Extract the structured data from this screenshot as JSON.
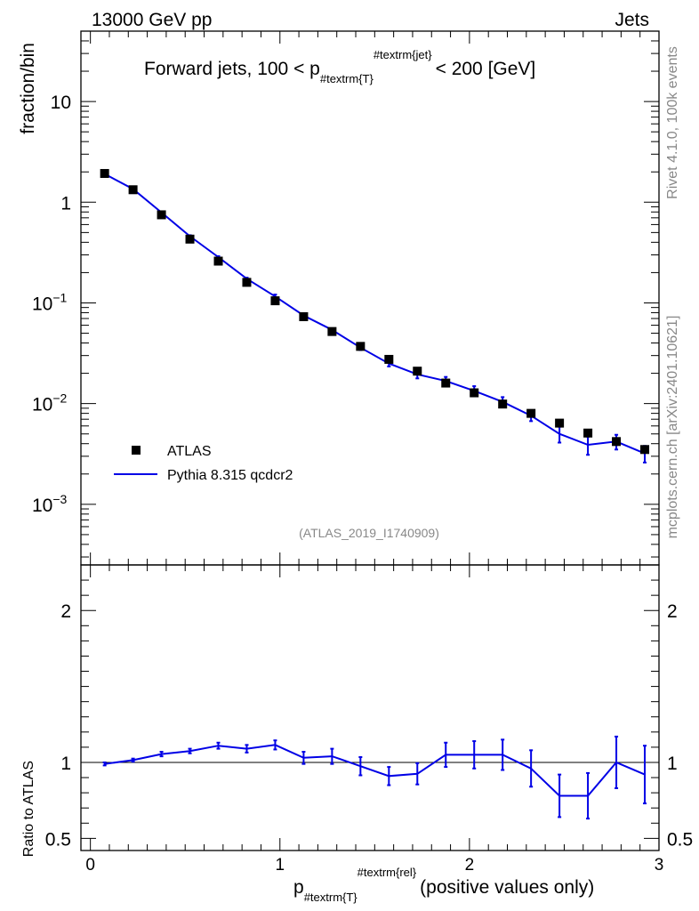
{
  "header": {
    "left": "13000 GeV pp",
    "right": "Jets"
  },
  "side": {
    "upper": "Rivet 4.1.0,  100k events",
    "lower": "mcplots.cern.ch [arXiv:2401.10621]"
  },
  "top_title": {
    "pre": "Forward jets, 100 < p",
    "sub": "#textrm{T}",
    "sup": "#textrm{jet}",
    "post": "< 200 [GeV]"
  },
  "analysis_id": "(ATLAS_2019_I1740909)",
  "legend": {
    "data_label": "ATLAS",
    "mc_label": "Pythia 8.315 qcdcr2"
  },
  "colors": {
    "mc": "#0000e6",
    "data": "#000000"
  },
  "x_axis": {
    "pre": "p",
    "sub": "#textrm{T}",
    "sup": "#textrm{rel}",
    "post": "(positive values only)",
    "ticks": [
      "0",
      "1",
      "2",
      "3"
    ]
  },
  "chart_data": [
    {
      "type": "scatter",
      "title": "Forward jets, 100 < p_T^jet < 200 [GeV]",
      "ylabel": "fraction/bin",
      "yscale": "log",
      "xlim": [
        -0.05,
        3.0
      ],
      "ylim": [
        0.00025,
        50
      ],
      "y_ticks": [
        {
          "v": 10,
          "label": "10",
          "exp": ""
        },
        {
          "v": 1,
          "label": "1",
          "exp": ""
        },
        {
          "v": 0.1,
          "label": "10",
          "exp": "−1"
        },
        {
          "v": 0.01,
          "label": "10",
          "exp": "−2"
        },
        {
          "v": 0.001,
          "label": "10",
          "exp": "−3"
        }
      ],
      "x": [
        0.075,
        0.225,
        0.375,
        0.525,
        0.675,
        0.825,
        0.975,
        1.125,
        1.275,
        1.425,
        1.575,
        1.725,
        1.875,
        2.025,
        2.175,
        2.325,
        2.475,
        2.625,
        2.775,
        2.925
      ],
      "series": [
        {
          "name": "ATLAS",
          "values": [
            1.93,
            1.33,
            0.75,
            0.43,
            0.26,
            0.16,
            0.105,
            0.073,
            0.052,
            0.037,
            0.0275,
            0.021,
            0.016,
            0.0128,
            0.0099,
            0.008,
            0.0064,
            0.0051,
            0.0042,
            0.0035
          ]
        },
        {
          "name": "Pythia 8.315 qcdcr2",
          "values": [
            1.91,
            1.35,
            0.79,
            0.46,
            0.285,
            0.174,
            0.116,
            0.075,
            0.054,
            0.036,
            0.025,
            0.0195,
            0.0168,
            0.0134,
            0.0104,
            0.0076,
            0.005,
            0.0039,
            0.0042,
            0.0032
          ],
          "err": [
            0.03,
            0.02,
            0.01,
            0.01,
            0.006,
            0.004,
            0.005,
            0.002,
            0.002,
            0.002,
            0.0016,
            0.0017,
            0.0016,
            0.0015,
            0.0012,
            0.0009,
            0.0009,
            0.0008,
            0.0007,
            0.0006
          ]
        }
      ]
    },
    {
      "type": "line",
      "ylabel": "Ratio to ATLAS",
      "xlim": [
        -0.05,
        3.0
      ],
      "ylim": [
        0.42,
        2.3
      ],
      "y_ticks": [
        {
          "v": 2,
          "label": "2"
        },
        {
          "v": 1,
          "label": "1"
        },
        {
          "v": 0.5,
          "label": "0.5"
        }
      ],
      "reference": 1.0,
      "x": [
        0.075,
        0.225,
        0.375,
        0.525,
        0.675,
        0.825,
        0.975,
        1.125,
        1.275,
        1.425,
        1.575,
        1.725,
        1.875,
        2.025,
        2.175,
        2.325,
        2.475,
        2.625,
        2.775,
        2.925
      ],
      "series": [
        {
          "name": "Pythia 8.315 qcdcr2 / ATLAS",
          "values": [
            0.99,
            1.015,
            1.055,
            1.075,
            1.11,
            1.09,
            1.115,
            1.03,
            1.04,
            0.975,
            0.91,
            0.925,
            1.05,
            1.05,
            1.05,
            0.96,
            0.78,
            0.78,
            1.0,
            0.92
          ],
          "err": [
            0.01,
            0.01,
            0.015,
            0.015,
            0.02,
            0.025,
            0.03,
            0.04,
            0.05,
            0.06,
            0.06,
            0.07,
            0.08,
            0.09,
            0.1,
            0.12,
            0.14,
            0.15,
            0.17,
            0.19
          ]
        }
      ]
    }
  ]
}
